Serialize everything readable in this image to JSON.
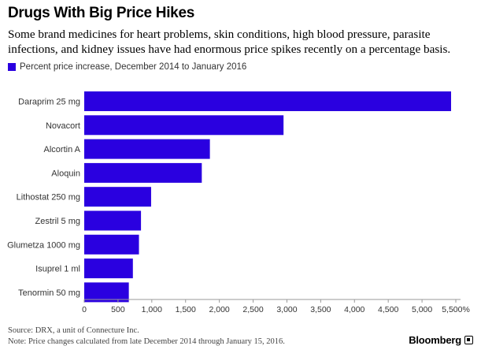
{
  "header": {
    "title": "Drugs With Big Price Hikes",
    "subtitle": "Some brand medicines for heart problems, skin conditions, high blood pressure, parasite infections, and kidney issues have had enormous price spikes recently on a percentage basis."
  },
  "footer": {
    "source": "Source: DRX, a unit of Connecture Inc.",
    "note": "Note: Price changes calculated from late December 2014 through January 15, 2016.",
    "brand": "Bloomberg"
  },
  "colors": {
    "bar": "#2a00e0",
    "axis": "#999999",
    "text": "#333333"
  },
  "chart_data": {
    "type": "bar",
    "orientation": "horizontal",
    "categories": [
      "Daraprim 25 mg",
      "Novacort",
      "Alcortin A",
      "Aloquin",
      "Lithostat 250 mg",
      "Zestril 5 mg",
      "Glumetza 1000 mg",
      "Isuprel 1 ml",
      "Tenormin 50 mg"
    ],
    "series": [
      {
        "name": "Percent price increase, December 2014 to January 2016",
        "values": [
          5430,
          2950,
          1860,
          1740,
          990,
          840,
          810,
          720,
          660
        ]
      }
    ],
    "xlim": [
      0,
      5500
    ],
    "ticks": [
      0,
      500,
      1000,
      1500,
      2000,
      2500,
      3000,
      3500,
      4000,
      4500,
      5000,
      5500
    ],
    "tick_labels": [
      "0",
      "500",
      "1,000",
      "1,500",
      "2,000",
      "2,500",
      "3,000",
      "3,500",
      "4,000",
      "4,500",
      "5,000",
      "5,500%"
    ],
    "legend_position": "top-left",
    "grid": false
  }
}
